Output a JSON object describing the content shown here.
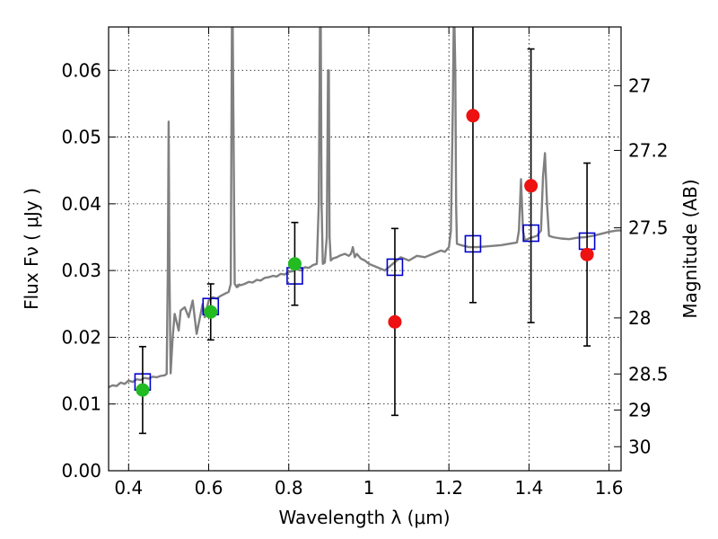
{
  "chart_data": {
    "type": "scatter",
    "xlabel": "Wavelength  λ (μm)",
    "ylabel_left": "Flux  Fν  ( μJy )",
    "ylabel_right": "Magnitude (AB)",
    "xlim": [
      0.35,
      1.63
    ],
    "ylim": [
      0.0,
      0.0665
    ],
    "grid": true,
    "x_ticks": [
      0.4,
      0.6,
      0.8,
      1.0,
      1.2,
      1.4,
      1.6
    ],
    "x_tick_labels": [
      "0.4",
      "0.6",
      "0.8",
      "1",
      "1.2",
      "1.4",
      "1.6"
    ],
    "y_ticks": [
      0.0,
      0.01,
      0.02,
      0.03,
      0.04,
      0.05,
      0.06
    ],
    "y_tick_labels": [
      "0.00",
      "0.01",
      "0.02",
      "0.03",
      "0.04",
      "0.05",
      "0.06"
    ],
    "right_ticks": [
      {
        "label": "27",
        "flux": 0.0577
      },
      {
        "label": "27.2",
        "flux": 0.048
      },
      {
        "label": "27.5",
        "flux": 0.0364
      },
      {
        "label": "28",
        "flux": 0.0229
      },
      {
        "label": "28.5",
        "flux": 0.0145
      },
      {
        "label": "29",
        "flux": 0.0091
      },
      {
        "label": "30",
        "flux": 0.0036
      }
    ],
    "colors": {
      "model": "#808080",
      "detection": "#22bb22",
      "upper": "#ee1111",
      "model_photometry": "#0000cc",
      "errorbar": "#000000"
    },
    "series": [
      {
        "kind": "spectrum",
        "x": [
          0.35,
          0.36,
          0.37,
          0.38,
          0.39,
          0.4,
          0.41,
          0.42,
          0.43,
          0.44,
          0.45,
          0.46,
          0.47,
          0.48,
          0.49,
          0.495,
          0.498,
          0.5,
          0.502,
          0.505,
          0.51,
          0.515,
          0.52,
          0.525,
          0.53,
          0.54,
          0.55,
          0.56,
          0.57,
          0.58,
          0.585,
          0.59,
          0.6,
          0.61,
          0.62,
          0.63,
          0.64,
          0.65,
          0.655,
          0.658,
          0.66,
          0.665,
          0.67,
          0.672,
          0.674,
          0.676,
          0.68,
          0.69,
          0.7,
          0.71,
          0.72,
          0.73,
          0.74,
          0.75,
          0.76,
          0.77,
          0.78,
          0.79,
          0.8,
          0.81,
          0.82,
          0.83,
          0.84,
          0.85,
          0.86,
          0.87,
          0.875,
          0.878,
          0.88,
          0.882,
          0.885,
          0.89,
          0.895,
          0.898,
          0.9,
          0.902,
          0.905,
          0.91,
          0.92,
          0.93,
          0.94,
          0.95,
          0.955,
          0.958,
          0.96,
          0.965,
          0.97,
          0.98,
          0.99,
          1.0,
          1.02,
          1.04,
          1.06,
          1.08,
          1.1,
          1.12,
          1.14,
          1.16,
          1.18,
          1.19,
          1.2,
          1.205,
          1.21,
          1.212,
          1.214,
          1.216,
          1.218,
          1.22,
          1.23,
          1.25,
          1.27,
          1.29,
          1.31,
          1.33,
          1.35,
          1.37,
          1.375,
          1.38,
          1.385,
          1.39,
          1.4,
          1.41,
          1.42,
          1.43,
          1.435,
          1.44,
          1.445,
          1.45,
          1.46,
          1.48,
          1.5,
          1.52,
          1.54,
          1.56,
          1.58,
          1.6,
          1.62,
          1.63
        ],
        "y": [
          0.0125,
          0.0128,
          0.0127,
          0.0132,
          0.013,
          0.0135,
          0.0133,
          0.0137,
          0.0136,
          0.0139,
          0.0138,
          0.0141,
          0.014,
          0.0142,
          0.0143,
          0.0145,
          0.03,
          0.0523,
          0.03,
          0.0146,
          0.02,
          0.0235,
          0.0223,
          0.021,
          0.024,
          0.0245,
          0.023,
          0.0255,
          0.0205,
          0.0235,
          0.025,
          0.023,
          0.0255,
          0.026,
          0.0258,
          0.0262,
          0.0265,
          0.0268,
          0.028,
          0.0665,
          0.0665,
          0.028,
          0.0275,
          0.0278,
          0.0276,
          0.0279,
          0.0278,
          0.028,
          0.0283,
          0.0282,
          0.0286,
          0.0285,
          0.0289,
          0.029,
          0.0292,
          0.0291,
          0.0295,
          0.0294,
          0.0298,
          0.0299,
          0.0302,
          0.03,
          0.0305,
          0.0304,
          0.0308,
          0.031,
          0.04,
          0.0665,
          0.0665,
          0.04,
          0.031,
          0.0312,
          0.035,
          0.06,
          0.06,
          0.035,
          0.0315,
          0.0318,
          0.032,
          0.0323,
          0.0325,
          0.0322,
          0.0325,
          0.033,
          0.0335,
          0.032,
          0.0325,
          0.0318,
          0.0315,
          0.031,
          0.0305,
          0.03,
          0.031,
          0.032,
          0.0315,
          0.0322,
          0.032,
          0.0325,
          0.033,
          0.0328,
          0.0335,
          0.036,
          0.055,
          0.0665,
          0.0665,
          0.06,
          0.04,
          0.034,
          0.0338,
          0.0335,
          0.0335,
          0.0336,
          0.0337,
          0.0338,
          0.034,
          0.0342,
          0.036,
          0.0437,
          0.036,
          0.0345,
          0.0348,
          0.035,
          0.0352,
          0.036,
          0.044,
          0.0476,
          0.04,
          0.0352,
          0.035,
          0.0348,
          0.0347,
          0.0349,
          0.035,
          0.0352,
          0.0355,
          0.0358,
          0.036,
          0.036
        ]
      },
      {
        "kind": "detection",
        "x": [
          0.435,
          0.605,
          0.815
        ],
        "y": [
          0.0121,
          0.0238,
          0.031
        ],
        "err": [
          0.0065,
          0.0042,
          0.0062
        ]
      },
      {
        "kind": "upper",
        "x": [
          1.065,
          1.26,
          1.405,
          1.545
        ],
        "y": [
          0.0223,
          0.0532,
          0.0427,
          0.0324
        ],
        "err": [
          0.014,
          0.028,
          0.0205,
          0.0137
        ]
      },
      {
        "kind": "model_photometry",
        "x": [
          0.435,
          0.605,
          0.815,
          1.065,
          1.26,
          1.405,
          1.545
        ],
        "y": [
          0.0133,
          0.0246,
          0.0292,
          0.0305,
          0.034,
          0.0356,
          0.0344
        ]
      }
    ]
  }
}
